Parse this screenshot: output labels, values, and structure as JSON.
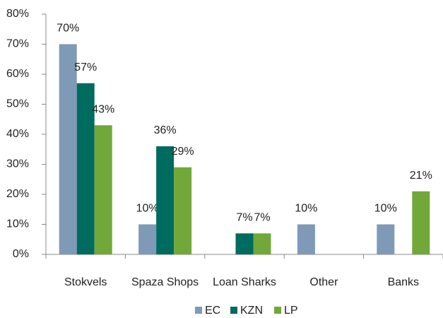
{
  "chart_data": {
    "type": "bar",
    "categories": [
      "Stokvels",
      "Spaza Shops",
      "Loan Sharks",
      "Other",
      "Banks"
    ],
    "series": [
      {
        "name": "EC",
        "color": "#7f9ab6",
        "values": [
          70,
          10,
          null,
          10,
          10
        ],
        "value_labels": [
          "70%",
          "10%",
          null,
          "10%",
          "10%"
        ]
      },
      {
        "name": "KZN",
        "color": "#006b5f",
        "values": [
          57,
          36,
          7,
          null,
          null
        ],
        "value_labels": [
          "57%",
          "36%",
          "7%",
          null,
          null
        ]
      },
      {
        "name": "LP",
        "color": "#72a83a",
        "values": [
          43,
          29,
          7,
          null,
          21
        ],
        "value_labels": [
          "43%",
          "29%",
          "7%",
          null,
          "21%"
        ]
      }
    ],
    "ylim": [
      0,
      80
    ],
    "yticks": [
      {
        "value": 0,
        "label": "0%"
      },
      {
        "value": 10,
        "label": "10%"
      },
      {
        "value": 20,
        "label": "20%"
      },
      {
        "value": 30,
        "label": "30%"
      },
      {
        "value": 40,
        "label": "40%"
      },
      {
        "value": 50,
        "label": "50%"
      },
      {
        "value": 60,
        "label": "60%"
      },
      {
        "value": 70,
        "label": "70%"
      },
      {
        "value": 80,
        "label": "80%"
      }
    ],
    "legend": "bottom"
  }
}
